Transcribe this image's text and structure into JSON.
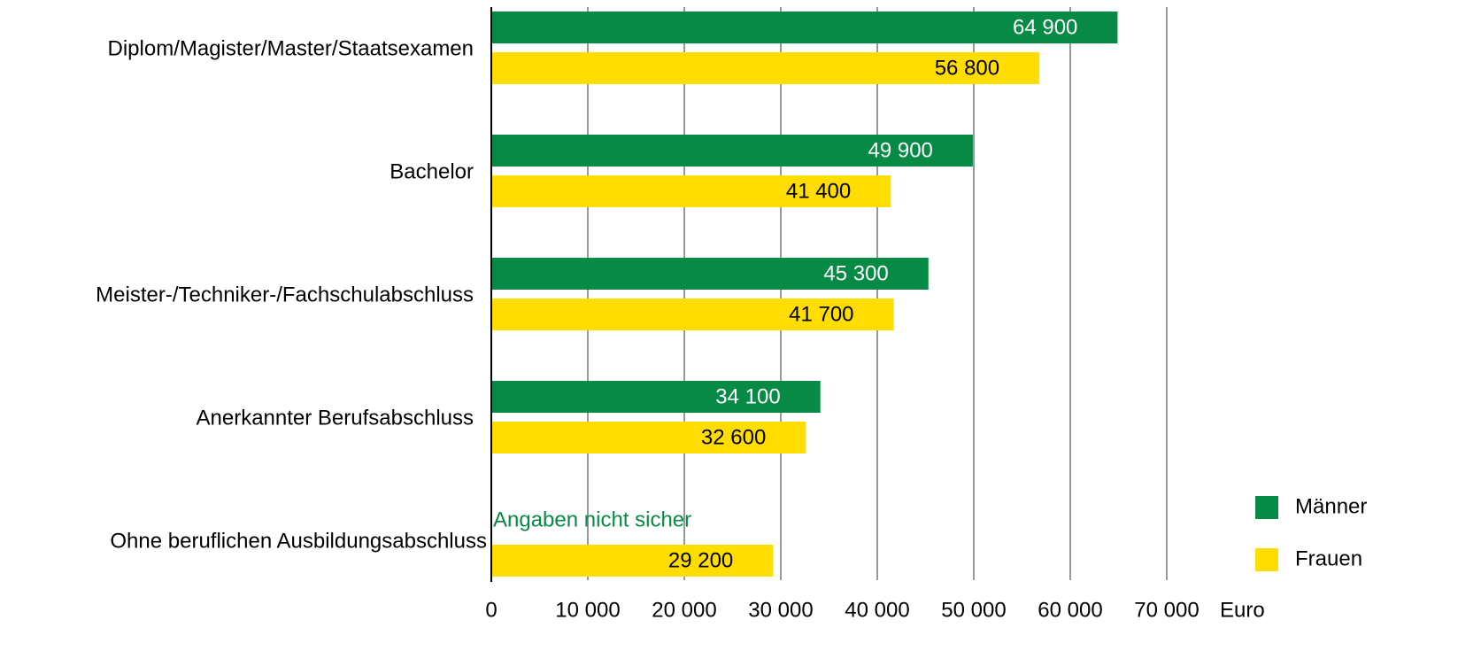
{
  "chart_data": {
    "type": "bar",
    "orientation": "horizontal",
    "categories": [
      "Diplom/Magister/Master/Staatsexamen",
      "Bachelor",
      "Meister-/Techniker-/Fachschulabschluss",
      "Anerkannter Berufsabschluss",
      "Ohne beruflichen Ausbildungsabschluss"
    ],
    "series": [
      {
        "name": "Männer",
        "color": "#078a45",
        "label_color": "#ffffff",
        "values": [
          64900,
          49900,
          45300,
          34100,
          null
        ],
        "value_labels": [
          "64 900",
          "49 900",
          "45 300",
          "34 100",
          null
        ]
      },
      {
        "name": "Frauen",
        "color": "#ffdd00",
        "label_color": "#000000",
        "values": [
          56800,
          41400,
          41700,
          32600,
          29200
        ],
        "value_labels": [
          "56 800",
          "41 400",
          "41 700",
          "32 600",
          "29 200"
        ]
      }
    ],
    "annotation": {
      "text": "Angaben nicht sicher",
      "category": 4,
      "series": 0,
      "color": "#078a45"
    },
    "x_label": "Euro",
    "xlim": [
      0,
      70000
    ],
    "xticks": [
      0,
      {
        "value": 10000,
        "label": "10 000"
      },
      {
        "value": 20000,
        "label": "20 000"
      },
      {
        "value": 30000,
        "label": "30 000"
      },
      {
        "value": 40000,
        "label": "40 000"
      },
      {
        "value": 50000,
        "label": "50 000"
      },
      {
        "value": 60000,
        "label": "60 000"
      },
      {
        "value": 70000,
        "label": "70 000"
      }
    ],
    "grid": true,
    "grid_color": "#999999",
    "legend": "lower right"
  }
}
